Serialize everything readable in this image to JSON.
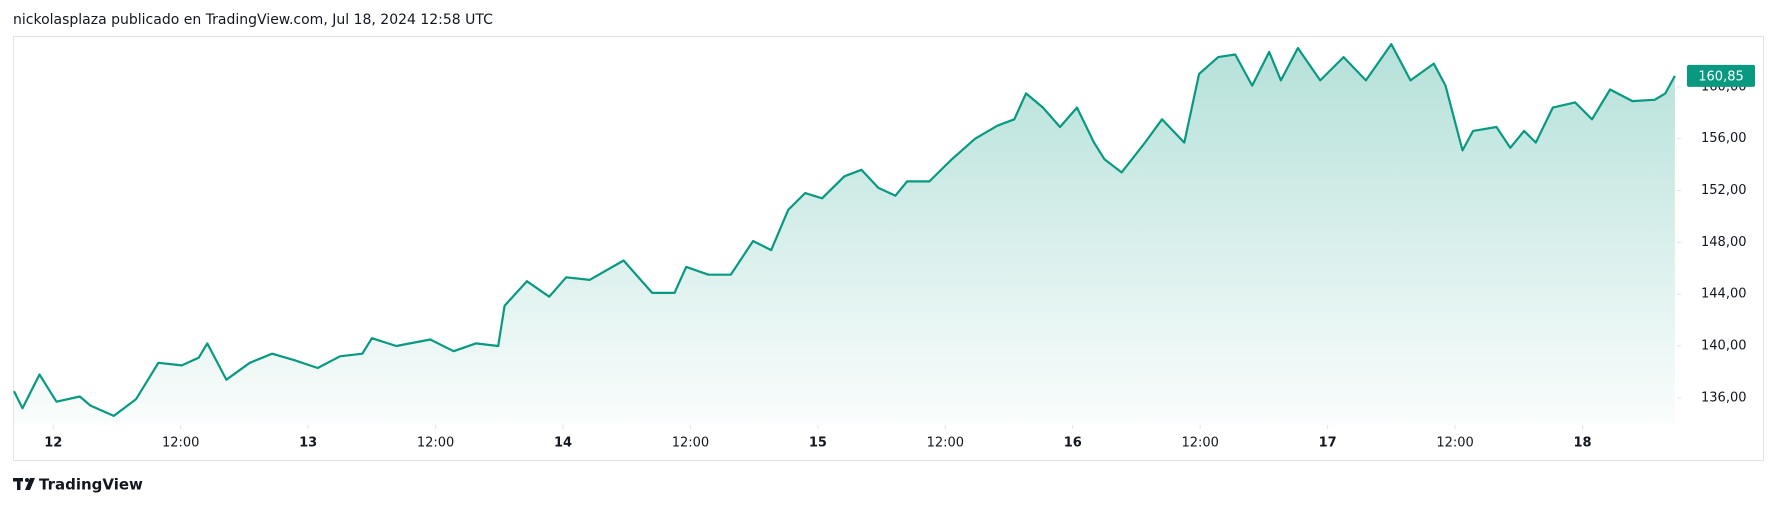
{
  "header": {
    "text": "nickolasplaza publicado en TradingView.com, Jul 18, 2024 12:58 UTC"
  },
  "footer": {
    "brand": "TradingView"
  },
  "chart_data": {
    "type": "area",
    "color": "#089981",
    "x": [
      -3.7,
      -2.9,
      -1.3,
      0.3,
      2.5,
      3.5,
      5.7,
      7.8,
      9.9,
      12.1,
      13.7,
      14.5,
      16.3,
      18.5,
      20.6,
      22.7,
      24.9,
      27.0,
      29.1,
      30.0,
      32.3,
      35.5,
      37.7,
      39.8,
      41.9,
      42.5,
      44.6,
      46.7,
      48.3,
      50.5,
      53.7,
      56.4,
      58.5,
      59.6,
      61.7,
      63.8,
      65.9,
      67.6,
      69.2,
      70.8,
      72.4,
      74.5,
      76.1,
      77.7,
      79.3,
      80.4,
      82.5,
      84.6,
      86.8,
      88.9,
      90.5,
      91.6,
      93.2,
      94.8,
      96.4,
      98.0,
      99.0,
      100.6,
      102.8,
      104.4,
      106.5,
      107.9,
      109.7,
      111.3,
      112.9,
      114.5,
      115.6,
      117.2,
      119.3,
      121.5,
      123.6,
      126.0,
      127.8,
      130.0,
      131.1,
      132.7,
      133.7,
      135.9,
      137.2,
      138.5,
      139.6,
      141.2,
      143.3,
      144.9,
      146.6,
      148.7,
      150.8,
      151.8,
      152.7
    ],
    "values": [
      136.5,
      135.2,
      137.8,
      135.7,
      136.1,
      135.4,
      134.6,
      135.9,
      138.7,
      138.5,
      139.1,
      140.2,
      137.4,
      138.7,
      139.4,
      138.9,
      138.3,
      139.2,
      139.4,
      140.6,
      140.0,
      140.5,
      139.6,
      140.2,
      140.0,
      143.1,
      145.0,
      143.8,
      145.3,
      145.1,
      146.6,
      144.1,
      144.1,
      146.1,
      145.5,
      145.5,
      148.1,
      147.4,
      150.5,
      151.8,
      151.4,
      153.1,
      153.6,
      152.2,
      151.6,
      152.7,
      152.7,
      154.4,
      156.0,
      157.0,
      157.5,
      159.5,
      158.4,
      156.9,
      158.4,
      155.7,
      154.4,
      153.4,
      155.7,
      157.5,
      155.7,
      161.0,
      162.3,
      162.5,
      160.1,
      162.7,
      160.5,
      163.0,
      160.5,
      162.3,
      160.5,
      163.3,
      160.5,
      161.8,
      160.1,
      155.1,
      156.6,
      156.9,
      155.3,
      156.6,
      155.7,
      158.4,
      158.8,
      157.5,
      159.8,
      158.9,
      159.0,
      159.5,
      160.85
    ],
    "value_labels": [
      null,
      null,
      null,
      null,
      null,
      null,
      null,
      null,
      null,
      null,
      null,
      null,
      null,
      null,
      null,
      null,
      null,
      null,
      null,
      null,
      null,
      null,
      null,
      null,
      null,
      null,
      null,
      null,
      null,
      null,
      null,
      null,
      null,
      null,
      null,
      null,
      null,
      null,
      null,
      null,
      null,
      null,
      null,
      null,
      null,
      null,
      null,
      null,
      null,
      null,
      null,
      null,
      null,
      null,
      null,
      null,
      null,
      null,
      null,
      null,
      null,
      null,
      null,
      null,
      null,
      null,
      null,
      null,
      null,
      null,
      null,
      null,
      null,
      null,
      null,
      null,
      null,
      null,
      null,
      null,
      null,
      null,
      null,
      null,
      null,
      null,
      null,
      null,
      "160,85"
    ],
    "xlim": [
      -3.7,
      152.9
    ],
    "xticks": [
      {
        "value": 0,
        "label": "12"
      },
      {
        "value": 12,
        "label": "12:00"
      },
      {
        "value": 24,
        "label": "13"
      },
      {
        "value": 36,
        "label": "12:00"
      },
      {
        "value": 48,
        "label": "14"
      },
      {
        "value": 60,
        "label": "12:00"
      },
      {
        "value": 72,
        "label": "15"
      },
      {
        "value": 84,
        "label": "12:00"
      },
      {
        "value": 96,
        "label": "16"
      },
      {
        "value": 108,
        "label": "12:00"
      },
      {
        "value": 120,
        "label": "17"
      },
      {
        "value": 132,
        "label": "12:00"
      },
      {
        "value": 144,
        "label": "18"
      }
    ],
    "ylim": [
      133.9,
      163.85
    ],
    "yticks": [
      {
        "value": 136,
        "label": "136,00"
      },
      {
        "value": 140,
        "label": "140,00"
      },
      {
        "value": 144,
        "label": "144,00"
      },
      {
        "value": 148,
        "label": "148,00"
      },
      {
        "value": 152,
        "label": "152,00"
      },
      {
        "value": 156,
        "label": "156,00"
      },
      {
        "value": 160,
        "label": "160,00"
      }
    ]
  }
}
